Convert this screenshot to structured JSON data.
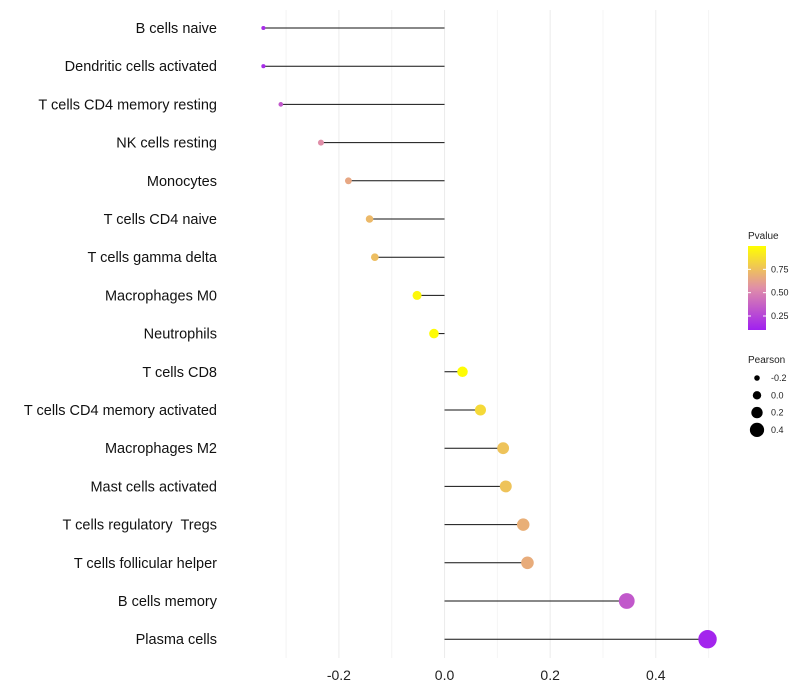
{
  "chart_data": {
    "type": "lollipop",
    "title": "",
    "xlabel": "",
    "ylabel": "",
    "xlim": [
      -0.41,
      0.55
    ],
    "x_ticks": [
      -0.2,
      0.0,
      0.2,
      0.4
    ],
    "x_tick_labels": [
      "-0.2",
      "0.0",
      "0.2",
      "0.4"
    ],
    "grid": true,
    "points": [
      {
        "label": "B cells naive",
        "pearson": -0.343,
        "pvalue": 0.15
      },
      {
        "label": "Dendritic cells activated",
        "pearson": -0.343,
        "pvalue": 0.15
      },
      {
        "label": "T cells CD4 memory resting",
        "pearson": -0.31,
        "pvalue": 0.33
      },
      {
        "label": "NK cells resting",
        "pearson": -0.234,
        "pvalue": 0.55
      },
      {
        "label": "Monocytes",
        "pearson": -0.182,
        "pvalue": 0.65
      },
      {
        "label": "T cells CD4 naive",
        "pearson": -0.142,
        "pvalue": 0.72
      },
      {
        "label": "T cells gamma delta",
        "pearson": -0.132,
        "pvalue": 0.74
      },
      {
        "label": "Macrophages M0",
        "pearson": -0.052,
        "pvalue": 0.97
      },
      {
        "label": "Neutrophils",
        "pearson": -0.02,
        "pvalue": 0.99
      },
      {
        "label": "T cells CD8",
        "pearson": 0.034,
        "pvalue": 0.99
      },
      {
        "label": "T cells CD4 memory activated",
        "pearson": 0.068,
        "pvalue": 0.85
      },
      {
        "label": "Macrophages M2",
        "pearson": 0.111,
        "pvalue": 0.76
      },
      {
        "label": "Mast cells activated",
        "pearson": 0.116,
        "pvalue": 0.76
      },
      {
        "label": "T cells regulatory  Tregs",
        "pearson": 0.149,
        "pvalue": 0.68
      },
      {
        "label": "T cells follicular helper",
        "pearson": 0.157,
        "pvalue": 0.67
      },
      {
        "label": "B cells memory",
        "pearson": 0.345,
        "pvalue": 0.33
      },
      {
        "label": "Plasma cells",
        "pearson": 0.498,
        "pvalue": 0.12
      }
    ],
    "legend_color": {
      "title": "Pvalue",
      "ticks": [
        0.25,
        0.5,
        0.75
      ],
      "tick_labels": [
        "0.25",
        "0.50",
        "0.75"
      ],
      "range": [
        0.1,
        1.0
      ],
      "low_color": "#a020f0",
      "mid_color": "#e08ea8",
      "high_color": "#ffff00"
    },
    "legend_size": {
      "title": "Pearson",
      "values": [
        -0.2,
        0.0,
        0.2,
        0.4
      ],
      "labels": [
        "-0.2",
        "0.0",
        "0.2",
        "0.4"
      ]
    }
  }
}
